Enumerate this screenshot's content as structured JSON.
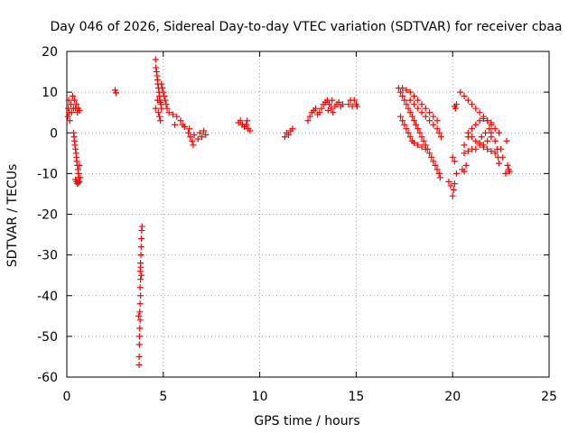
{
  "chart_data": {
    "type": "scatter",
    "title": "Day 046 of 2026, Sidereal Day-to-day VTEC variation (SDTVAR) for receiver cbaa",
    "xlabel": "GPS time / hours",
    "ylabel": "SDTVAR / TECUs",
    "xlim": [
      0,
      25
    ],
    "ylim": [
      -60,
      20
    ],
    "xticks": [
      0,
      5,
      10,
      15,
      20,
      25
    ],
    "yticks": [
      -60,
      -50,
      -40,
      -30,
      -20,
      -10,
      0,
      10,
      20
    ],
    "grid": true,
    "marker": "+",
    "color": "#ff0000",
    "series": [
      {
        "name": "SDTVAR",
        "points": [
          [
            0.05,
            4
          ],
          [
            0.08,
            6
          ],
          [
            0.1,
            8
          ],
          [
            0.12,
            5
          ],
          [
            0.15,
            3
          ],
          [
            0.2,
            7
          ],
          [
            0.25,
            5
          ],
          [
            0.3,
            9
          ],
          [
            0.35,
            6
          ],
          [
            0.4,
            8
          ],
          [
            0.45,
            6
          ],
          [
            0.5,
            7
          ],
          [
            0.55,
            5
          ],
          [
            0.6,
            6
          ],
          [
            0.65,
            5.5
          ],
          [
            0.35,
            0
          ],
          [
            0.38,
            -1
          ],
          [
            0.4,
            -2
          ],
          [
            0.42,
            -3
          ],
          [
            0.45,
            -4
          ],
          [
            0.48,
            -5
          ],
          [
            0.5,
            -6
          ],
          [
            0.52,
            -7
          ],
          [
            0.55,
            -8
          ],
          [
            0.58,
            -9
          ],
          [
            0.6,
            -10
          ],
          [
            0.62,
            -11
          ],
          [
            0.65,
            -12
          ],
          [
            0.5,
            -12
          ],
          [
            0.55,
            -12.5
          ],
          [
            0.45,
            -11.5
          ],
          [
            0.6,
            -12.3
          ],
          [
            0.7,
            -11
          ],
          [
            0.65,
            -8
          ],
          [
            2.5,
            10.5
          ],
          [
            2.55,
            9.8
          ],
          [
            3.75,
            -57
          ],
          [
            3.75,
            -55
          ],
          [
            3.76,
            -52
          ],
          [
            3.77,
            -50
          ],
          [
            3.78,
            -48
          ],
          [
            3.8,
            -46
          ],
          [
            3.78,
            -44
          ],
          [
            3.8,
            -42
          ],
          [
            3.82,
            -40
          ],
          [
            3.8,
            -38
          ],
          [
            3.82,
            -36
          ],
          [
            3.8,
            -34
          ],
          [
            3.82,
            -32
          ],
          [
            3.84,
            -30
          ],
          [
            3.85,
            -28
          ],
          [
            3.86,
            -26
          ],
          [
            3.88,
            -24
          ],
          [
            3.9,
            -23
          ],
          [
            3.72,
            -45
          ],
          [
            3.83,
            -33
          ],
          [
            3.87,
            -35
          ],
          [
            4.6,
            18
          ],
          [
            4.62,
            16
          ],
          [
            4.65,
            15
          ],
          [
            4.68,
            14
          ],
          [
            4.7,
            13
          ],
          [
            4.72,
            12
          ],
          [
            4.75,
            11
          ],
          [
            4.78,
            10
          ],
          [
            4.8,
            9
          ],
          [
            4.82,
            8
          ],
          [
            4.85,
            7.5
          ],
          [
            4.88,
            7
          ],
          [
            4.9,
            6
          ],
          [
            4.75,
            5
          ],
          [
            4.8,
            4
          ],
          [
            4.85,
            3
          ],
          [
            4.9,
            12
          ],
          [
            4.95,
            11
          ],
          [
            5.0,
            10
          ],
          [
            5.05,
            9
          ],
          [
            5.1,
            8
          ],
          [
            5.15,
            7
          ],
          [
            5.2,
            6
          ],
          [
            4.6,
            6
          ],
          [
            4.7,
            8
          ],
          [
            5.3,
            5
          ],
          [
            5.5,
            4.5
          ],
          [
            5.7,
            4
          ],
          [
            5.9,
            3
          ],
          [
            6.0,
            2
          ],
          [
            6.1,
            1.5
          ],
          [
            5.6,
            2
          ],
          [
            6.3,
            0
          ],
          [
            6.4,
            -1
          ],
          [
            6.5,
            -2
          ],
          [
            6.55,
            -3
          ],
          [
            6.35,
            1
          ],
          [
            6.6,
            -0.5
          ],
          [
            6.8,
            -1.5
          ],
          [
            6.9,
            0
          ],
          [
            7.0,
            -1
          ],
          [
            7.2,
            -0.5
          ],
          [
            7.1,
            0.5
          ],
          [
            8.9,
            2.5
          ],
          [
            9.0,
            3
          ],
          [
            9.1,
            2
          ],
          [
            9.2,
            1.5
          ],
          [
            9.3,
            2
          ],
          [
            9.4,
            1
          ],
          [
            9.5,
            0.5
          ],
          [
            9.35,
            3
          ],
          [
            11.3,
            -1
          ],
          [
            11.4,
            0
          ],
          [
            11.5,
            -0.5
          ],
          [
            11.6,
            0.5
          ],
          [
            11.7,
            1
          ],
          [
            12.5,
            3
          ],
          [
            12.6,
            4
          ],
          [
            12.7,
            5
          ],
          [
            12.8,
            5.5
          ],
          [
            12.9,
            6
          ],
          [
            13.0,
            4.5
          ],
          [
            13.1,
            5
          ],
          [
            13.2,
            6
          ],
          [
            13.3,
            7
          ],
          [
            13.4,
            7.5
          ],
          [
            13.5,
            8
          ],
          [
            13.6,
            7
          ],
          [
            13.7,
            6
          ],
          [
            13.8,
            5
          ],
          [
            13.9,
            6.5
          ],
          [
            14.0,
            7
          ],
          [
            14.1,
            7.5
          ],
          [
            14.2,
            6.5
          ],
          [
            14.3,
            7
          ],
          [
            13.55,
            5.5
          ],
          [
            13.75,
            8
          ],
          [
            14.6,
            7
          ],
          [
            14.7,
            8
          ],
          [
            14.8,
            6.5
          ],
          [
            14.9,
            8
          ],
          [
            15.0,
            7
          ],
          [
            15.05,
            6.5
          ],
          [
            17.2,
            11
          ],
          [
            17.3,
            10
          ],
          [
            17.4,
            9
          ],
          [
            17.5,
            8
          ],
          [
            17.6,
            7
          ],
          [
            17.7,
            6
          ],
          [
            17.8,
            5
          ],
          [
            17.9,
            4
          ],
          [
            18.0,
            3
          ],
          [
            18.1,
            2
          ],
          [
            18.2,
            1
          ],
          [
            18.3,
            0
          ],
          [
            18.4,
            -1
          ],
          [
            18.5,
            -2
          ],
          [
            18.6,
            -3
          ],
          [
            18.7,
            -4
          ],
          [
            18.8,
            -5
          ],
          [
            17.3,
            4
          ],
          [
            17.4,
            3
          ],
          [
            17.5,
            2
          ],
          [
            17.6,
            1
          ],
          [
            17.7,
            0
          ],
          [
            17.8,
            -1
          ],
          [
            17.9,
            -2
          ],
          [
            18.0,
            -2.5
          ],
          [
            18.2,
            -3
          ],
          [
            18.4,
            -3.5
          ],
          [
            18.6,
            -4
          ],
          [
            17.4,
            11
          ],
          [
            17.6,
            10.5
          ],
          [
            17.8,
            10
          ],
          [
            18.0,
            9
          ],
          [
            18.2,
            8
          ],
          [
            18.4,
            7
          ],
          [
            18.6,
            6
          ],
          [
            18.8,
            5
          ],
          [
            19.0,
            4
          ],
          [
            19.2,
            3
          ],
          [
            17.8,
            8
          ],
          [
            18.0,
            7
          ],
          [
            18.2,
            6
          ],
          [
            18.4,
            5
          ],
          [
            18.6,
            4
          ],
          [
            18.8,
            3
          ],
          [
            19.0,
            2
          ],
          [
            19.2,
            1
          ],
          [
            19.3,
            0
          ],
          [
            19.4,
            -1
          ],
          [
            18.9,
            -6
          ],
          [
            19.0,
            -7
          ],
          [
            19.1,
            -8
          ],
          [
            19.2,
            -9
          ],
          [
            19.3,
            -10
          ],
          [
            19.35,
            -11
          ],
          [
            19.8,
            -12
          ],
          [
            19.9,
            -13
          ],
          [
            20.0,
            -15.5
          ],
          [
            20.05,
            -14
          ],
          [
            20.1,
            -12.5
          ],
          [
            20.2,
            -10
          ],
          [
            20.1,
            -7
          ],
          [
            20.0,
            -6
          ],
          [
            20.1,
            6.5
          ],
          [
            20.2,
            7
          ],
          [
            20.15,
            6
          ],
          [
            20.4,
            10
          ],
          [
            20.6,
            9
          ],
          [
            20.8,
            8
          ],
          [
            21.0,
            7
          ],
          [
            21.2,
            6
          ],
          [
            21.4,
            5
          ],
          [
            21.6,
            4
          ],
          [
            21.8,
            3
          ],
          [
            22.0,
            2
          ],
          [
            22.2,
            1
          ],
          [
            22.4,
            0
          ],
          [
            20.6,
            -3
          ],
          [
            20.8,
            -1
          ],
          [
            21.0,
            1
          ],
          [
            21.2,
            2
          ],
          [
            21.4,
            3
          ],
          [
            21.6,
            3.5
          ],
          [
            21.8,
            3
          ],
          [
            22.0,
            2.5
          ],
          [
            20.6,
            -5
          ],
          [
            20.8,
            -4.5
          ],
          [
            21.0,
            -4
          ],
          [
            21.2,
            -4
          ],
          [
            21.4,
            -3
          ],
          [
            21.6,
            -3.5
          ],
          [
            21.8,
            -4
          ],
          [
            22.0,
            -4.5
          ],
          [
            22.2,
            -5
          ],
          [
            20.8,
            0
          ],
          [
            21.0,
            -1
          ],
          [
            21.2,
            -2
          ],
          [
            21.4,
            -2.5
          ],
          [
            21.6,
            -3
          ],
          [
            21.8,
            -2
          ],
          [
            22.0,
            -1
          ],
          [
            20.5,
            -9
          ],
          [
            20.6,
            -9.5
          ],
          [
            20.7,
            -8
          ],
          [
            21.5,
            -1
          ],
          [
            21.7,
            0
          ],
          [
            21.9,
            1
          ],
          [
            22.0,
            0
          ],
          [
            22.2,
            -2
          ],
          [
            22.3,
            -4
          ],
          [
            22.35,
            -6
          ],
          [
            22.4,
            -7.5
          ],
          [
            22.5,
            -4
          ],
          [
            22.6,
            -6
          ],
          [
            22.8,
            -2
          ],
          [
            22.85,
            -8
          ],
          [
            22.9,
            -9
          ],
          [
            22.95,
            -9.5
          ],
          [
            22.75,
            -10
          ]
        ]
      }
    ]
  }
}
